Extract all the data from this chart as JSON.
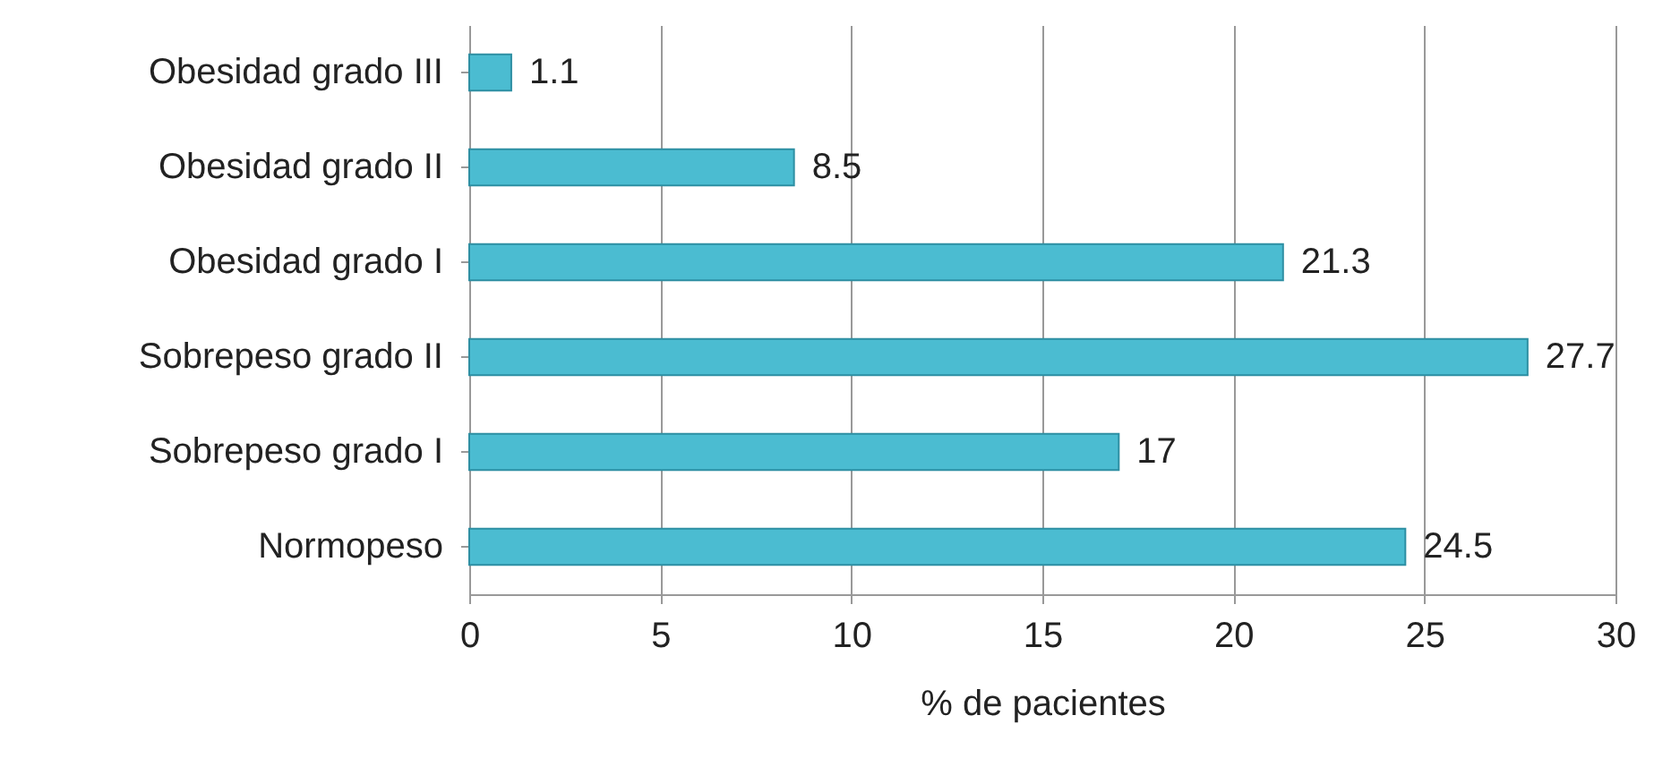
{
  "chart_data": {
    "type": "bar",
    "orientation": "horizontal",
    "xlabel": "% de pacientes",
    "categories": [
      "Obesidad grado III",
      "Obesidad grado II",
      "Obesidad grado I",
      "Sobrepeso grado II",
      "Sobrepeso grado I",
      "Normopeso"
    ],
    "values": [
      1.1,
      8.5,
      21.3,
      27.7,
      17,
      24.5
    ],
    "color": "#4bbcd1",
    "xlim": [
      0,
      30
    ],
    "xticks": [
      0,
      5,
      10,
      15,
      20,
      25,
      30
    ],
    "grid": "x",
    "data_labels": true
  }
}
